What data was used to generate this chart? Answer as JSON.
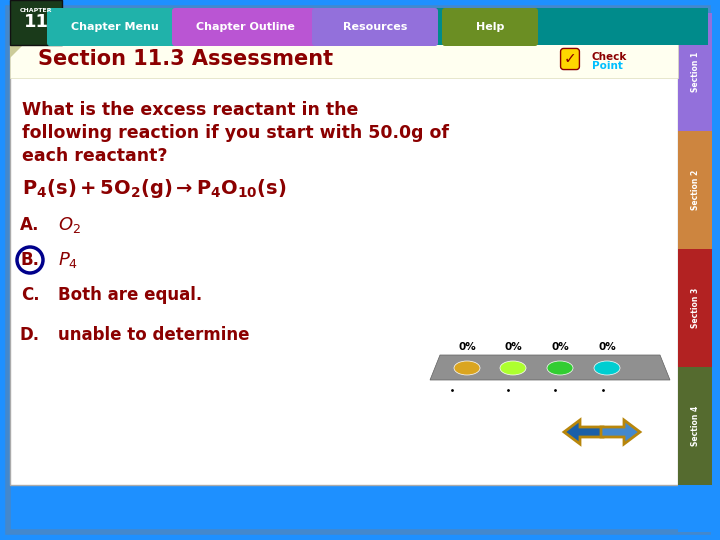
{
  "title": "Section 11.3 Assessment",
  "title_color": "#8B0000",
  "bg_color": "#FFFFFF",
  "outer_bg": "#1E90FF",
  "question_lines": [
    "What is the excess reactant in the",
    "following reaction if you start with 50.0g of",
    "each reactant?"
  ],
  "question_color": "#8B0000",
  "equation_color": "#8B0000",
  "option_letters": [
    "A.",
    "B.",
    "C.",
    "D."
  ],
  "option_texts": [
    "O_2",
    "P_4",
    "Both are equal.",
    "unable to determine"
  ],
  "option_color": "#8B0000",
  "selected_option": 1,
  "selected_circle_color": "#00008B",
  "top_bar_color": "#008B8B",
  "chapter_bg": "#1a3a1a",
  "nav_labels": [
    "Chapter Menu",
    "Chapter Outline",
    "Resources",
    "Help"
  ],
  "nav_colors": [
    "#20B2AA",
    "#BA55D3",
    "#BA55D3",
    "#6B8E23"
  ],
  "nav_active": 0,
  "sidebar_colors": [
    "#9370DB",
    "#CD853F",
    "#B22222",
    "#556B2F"
  ],
  "sidebar_labels": [
    "Section 1",
    "Section 2",
    "Section 3",
    "Section 4"
  ],
  "percent_labels": [
    "0%",
    "0%",
    "0%",
    "0%"
  ],
  "poll_colors": [
    "#DAA520",
    "#ADFF2F",
    "#32CD32",
    "#00CED1"
  ],
  "poll_bg": "#888888",
  "arrow_left_color": "#1E5799",
  "arrow_right_color": "#1E90FF",
  "arrow_border": "#B8860B"
}
